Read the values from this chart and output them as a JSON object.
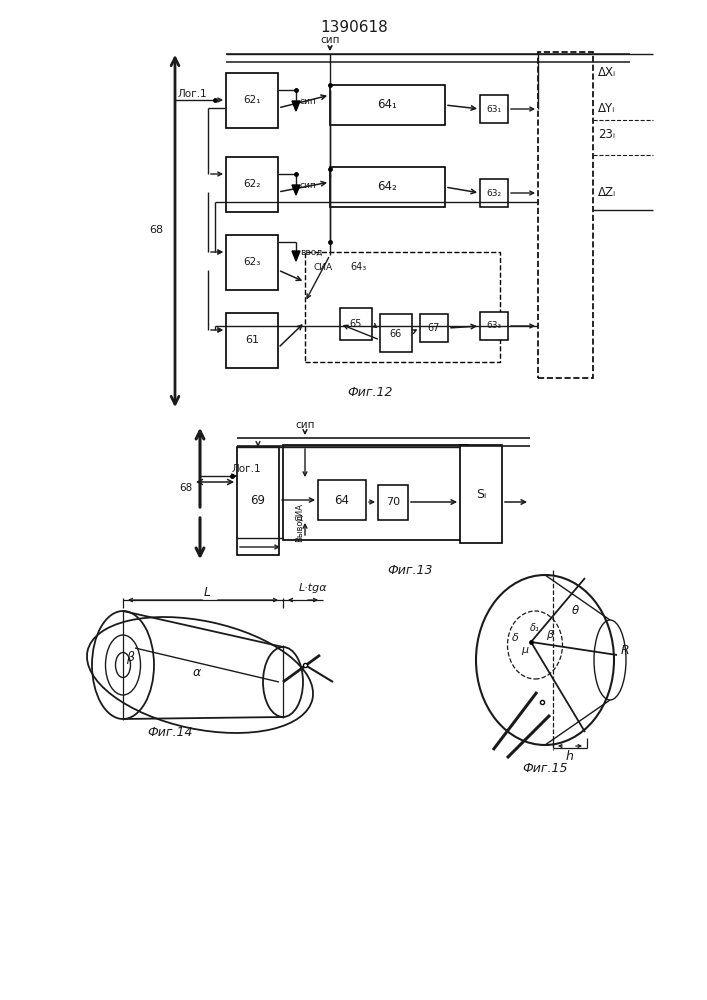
{
  "title": "1390618",
  "fig12_label": "Фиг.12",
  "fig13_label": "Фиг.13",
  "fig14_label": "Фиг.14",
  "fig15_label": "Фиг.15",
  "bg_color": "#ffffff",
  "lc": "#1a1a1a",
  "tc": "#1a1a1a"
}
